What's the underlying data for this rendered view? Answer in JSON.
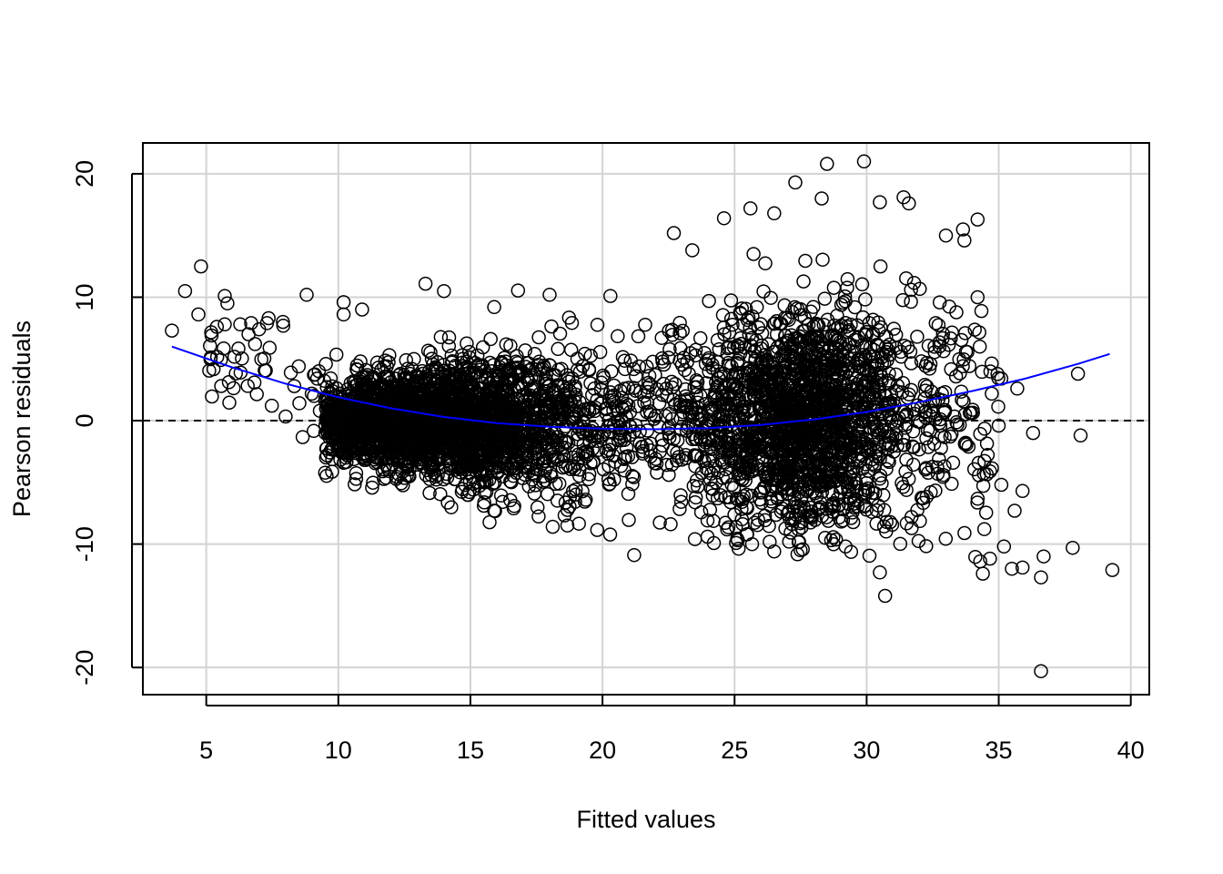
{
  "chart_data": {
    "type": "scatter",
    "title": "",
    "xlabel": "Fitted values",
    "ylabel": "Pearson residuals",
    "xlim": [
      2.6,
      40.7
    ],
    "ylim": [
      -22.2,
      22.5
    ],
    "x_ticks": [
      5,
      10,
      15,
      20,
      25,
      30,
      35,
      40
    ],
    "y_ticks": [
      -20,
      -10,
      0,
      10,
      20
    ],
    "x_tick_labels": [
      "5",
      "10",
      "15",
      "20",
      "25",
      "30",
      "35",
      "40"
    ],
    "y_tick_labels": [
      "-20",
      "-10",
      "0",
      "10",
      "20"
    ],
    "grid": true,
    "reference_line": {
      "y": 0,
      "style": "dashed",
      "color": "#000000"
    },
    "smooth_curve": {
      "color": "#0000ff",
      "x": [
        3.7,
        6,
        8,
        10,
        12,
        14,
        16,
        18,
        20,
        22,
        24,
        26,
        28,
        30,
        32,
        34,
        36,
        38,
        39.2
      ],
      "y": [
        6.0,
        4.3,
        3.0,
        1.9,
        1.0,
        0.3,
        -0.2,
        -0.5,
        -0.65,
        -0.7,
        -0.6,
        -0.35,
        0.1,
        0.7,
        1.5,
        2.4,
        3.4,
        4.6,
        5.4
      ]
    },
    "points": {
      "marker": "open-circle",
      "color": "#000000",
      "n_approx": 6000,
      "outliers": [
        [
          3.7,
          7.3
        ],
        [
          4.2,
          10.5
        ],
        [
          4.8,
          12.5
        ],
        [
          4.7,
          8.6
        ],
        [
          5.2,
          6.9
        ],
        [
          5.4,
          7.6
        ],
        [
          5.7,
          10.1
        ],
        [
          5.8,
          9.5
        ],
        [
          5.7,
          7.8
        ],
        [
          6.3,
          3.9
        ],
        [
          6.6,
          7.0
        ],
        [
          6.7,
          7.9
        ],
        [
          7.0,
          7.4
        ],
        [
          7.3,
          7.9
        ],
        [
          7.4,
          5.9
        ],
        [
          7.9,
          8.0
        ],
        [
          8.5,
          4.4
        ],
        [
          8.8,
          10.2
        ],
        [
          9.3,
          0.8
        ],
        [
          9.2,
          3.4
        ],
        [
          10.2,
          9.6
        ],
        [
          10.2,
          8.6
        ],
        [
          10.9,
          9.0
        ],
        [
          13.3,
          11.1
        ],
        [
          14.0,
          10.5
        ],
        [
          15.9,
          9.2
        ],
        [
          18.0,
          10.2
        ],
        [
          20.3,
          10.1
        ],
        [
          22.7,
          15.2
        ],
        [
          23.4,
          13.8
        ],
        [
          24.6,
          16.4
        ],
        [
          26.5,
          16.8
        ],
        [
          27.3,
          19.3
        ],
        [
          28.5,
          20.8
        ],
        [
          29.9,
          21.0
        ],
        [
          31.4,
          18.1
        ],
        [
          34.2,
          16.3
        ],
        [
          33.7,
          14.6
        ],
        [
          34.2,
          10.0
        ],
        [
          38.0,
          3.8
        ],
        [
          38.1,
          -1.2
        ],
        [
          36.3,
          -1.0
        ],
        [
          35.7,
          2.6
        ],
        [
          35.1,
          3.4
        ],
        [
          35.0,
          -0.4
        ],
        [
          35.1,
          -5.2
        ],
        [
          35.6,
          -7.3
        ],
        [
          35.9,
          -5.7
        ],
        [
          35.2,
          -10.2
        ],
        [
          35.5,
          -12.0
        ],
        [
          35.9,
          -11.9
        ],
        [
          36.6,
          -12.7
        ],
        [
          36.7,
          -11.0
        ],
        [
          37.8,
          -10.3
        ],
        [
          39.3,
          -12.1
        ],
        [
          36.6,
          -20.3
        ],
        [
          34.4,
          -12.4
        ],
        [
          34.3,
          -11.4
        ],
        [
          30.5,
          -12.3
        ],
        [
          30.7,
          -14.2
        ],
        [
          29.2,
          -10.2
        ],
        [
          26.5,
          -10.6
        ],
        [
          27.5,
          -10.5
        ],
        [
          23.5,
          -9.6
        ],
        [
          33.0,
          15.0
        ],
        [
          31.6,
          17.6
        ],
        [
          30.5,
          17.7
        ],
        [
          28.3,
          18.0
        ],
        [
          25.6,
          17.2
        ]
      ]
    }
  }
}
